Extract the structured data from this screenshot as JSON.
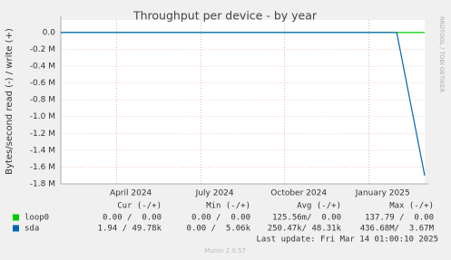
{
  "chart_data": {
    "type": "line",
    "title": "Throughput per device - by year",
    "y_label": "Bytes/second read (-) / write (+)",
    "side_label": "RRDTOOL / TOBI OETIKER",
    "x": [
      "2024-02",
      "2024-03",
      "2024-04",
      "2024-05",
      "2024-06",
      "2024-07",
      "2024-08",
      "2024-09",
      "2024-10",
      "2024-11",
      "2024-12",
      "2025-01",
      "2025-02",
      "2025-03"
    ],
    "xlim": [
      "2024-02",
      "2025-03"
    ],
    "xticks": [
      {
        "value": "2024-04",
        "label": "April 2024"
      },
      {
        "value": "2024-07",
        "label": "July 2024"
      },
      {
        "value": "2024-10",
        "label": "October 2024"
      },
      {
        "value": "2025-01",
        "label": "January 2025"
      }
    ],
    "ylim": [
      -1800000,
      150000
    ],
    "yticks": [
      {
        "value": 0,
        "label": "0.0"
      },
      {
        "value": -200000,
        "label": "-0.2 M"
      },
      {
        "value": -400000,
        "label": "-0.4 M"
      },
      {
        "value": -600000,
        "label": "-0.6 M"
      },
      {
        "value": -800000,
        "label": "-0.8 M"
      },
      {
        "value": -1000000,
        "label": "-1.0 M"
      },
      {
        "value": -1200000,
        "label": "-1.2 M"
      },
      {
        "value": -1400000,
        "label": "-1.4 M"
      },
      {
        "value": -1600000,
        "label": "-1.6 M"
      },
      {
        "value": -1800000,
        "label": "-1.8 M"
      }
    ],
    "grid": true,
    "series": [
      {
        "name": "loop0",
        "color": "#00cc00",
        "values": [
          0,
          0,
          0,
          0,
          0,
          0,
          0,
          0,
          0,
          0,
          0,
          0,
          0,
          0
        ]
      },
      {
        "name": "sda",
        "color": "#0066b3",
        "values": [
          0,
          0,
          0,
          0,
          0,
          0,
          0,
          0,
          0,
          0,
          0,
          0,
          0,
          -1700000
        ]
      }
    ],
    "stats": {
      "headers": [
        "Cur (-/+)",
        "Min (-/+)",
        "Avg (-/+)",
        "Max (-/+)"
      ],
      "rows": [
        [
          "0.00 /  0.00",
          "0.00 /  0.00",
          "125.56m/  0.00",
          "137.79 /  0.00"
        ],
        [
          "1.94 / 49.78k",
          "0.00 /  5.06k",
          "250.47k/ 48.31k",
          "436.68M/  3.67M"
        ]
      ]
    },
    "last_update": "Last update: Fri Mar 14 01:00:10 2025",
    "footer": "Munin 2.0.57"
  }
}
